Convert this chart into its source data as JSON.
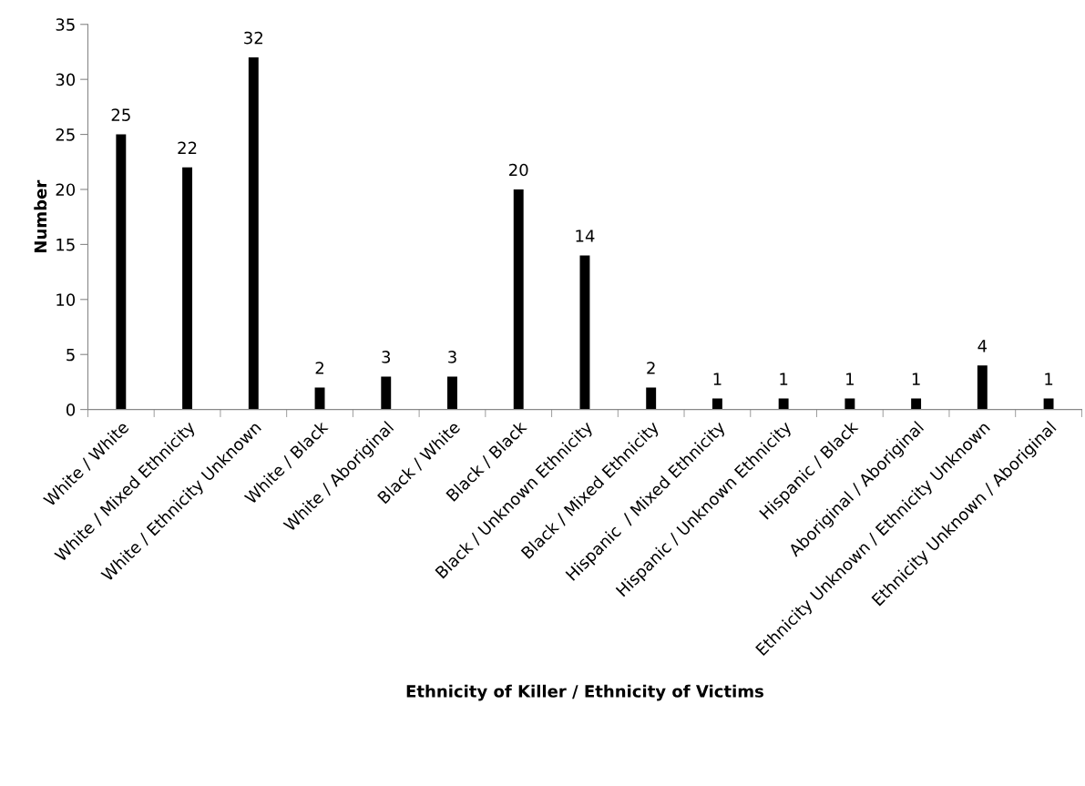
{
  "chart_data": {
    "type": "bar",
    "xlabel": "Ethnicity of Killer / Ethnicity of Victims",
    "ylabel": "Number",
    "categories": [
      "White / White",
      "White / Mixed Ethnicity",
      "White / Ethnicity Unknown",
      "White / Black",
      "White / Aboriginal",
      "Black / White",
      "Black / Black",
      "Black / Unknown Ethnicity",
      "Black / Mixed Ethnicity",
      "Hispanic  / Mixed Ethnicity",
      "Hispanic / Unknown Ethnicity",
      "Hispanic / Black",
      "Aboriginal / Aboriginal",
      "Ethnicity Unknown / Ethnicity Unknown",
      "Ethnicity Unknown / Aboriginal"
    ],
    "values": [
      25,
      22,
      32,
      2,
      3,
      3,
      20,
      14,
      2,
      1,
      1,
      1,
      1,
      4,
      1
    ],
    "color": "#000000",
    "ylim": [
      0,
      35
    ],
    "yticks": [
      0,
      5,
      10,
      15,
      20,
      25,
      30,
      35
    ],
    "data_labels": true,
    "grid": false,
    "legend": false
  }
}
